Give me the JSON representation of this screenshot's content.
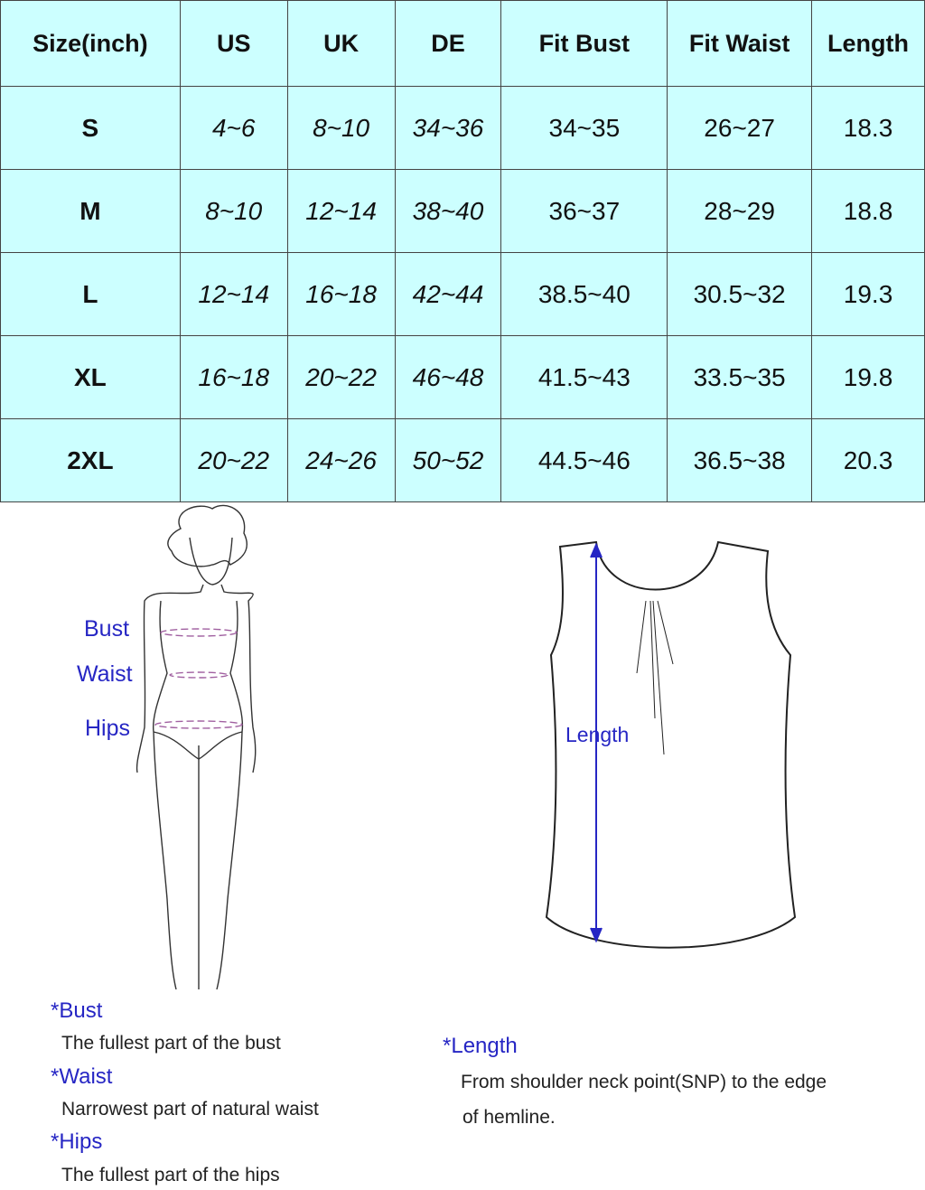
{
  "table": {
    "headers": [
      "Size(inch)",
      "US",
      "UK",
      "DE",
      "Fit Bust",
      "Fit Waist",
      "Length"
    ],
    "rows": [
      [
        "S",
        "4~6",
        "8~10",
        "34~36",
        "34~35",
        "26~27",
        "18.3"
      ],
      [
        "M",
        "8~10",
        "12~14",
        "38~40",
        "36~37",
        "28~29",
        "18.8"
      ],
      [
        "L",
        "12~14",
        "16~18",
        "42~44",
        "38.5~40",
        "30.5~32",
        "19.3"
      ],
      [
        "XL",
        "16~18",
        "20~22",
        "46~48",
        "41.5~43",
        "33.5~35",
        "19.8"
      ],
      [
        "2XL",
        "20~22",
        "24~26",
        "50~52",
        "44.5~46",
        "36.5~38",
        "20.3"
      ]
    ],
    "background": "#ccffff"
  },
  "figure": {
    "labels": {
      "bust": "Bust",
      "waist": "Waist",
      "hips": "Hips"
    },
    "length_label": "Length",
    "label_color": "#2626c4"
  },
  "notes": {
    "bust_title": "*Bust",
    "bust_desc": "The fullest part of the bust",
    "waist_title": "*Waist",
    "waist_desc": "Narrowest part of natural waist",
    "hips_title": "*Hips",
    "hips_desc": "The fullest part of the hips",
    "length_title": "*Length",
    "length_desc_1": "From shoulder neck point(SNP) to the edge",
    "length_desc_2": "of hemline."
  }
}
